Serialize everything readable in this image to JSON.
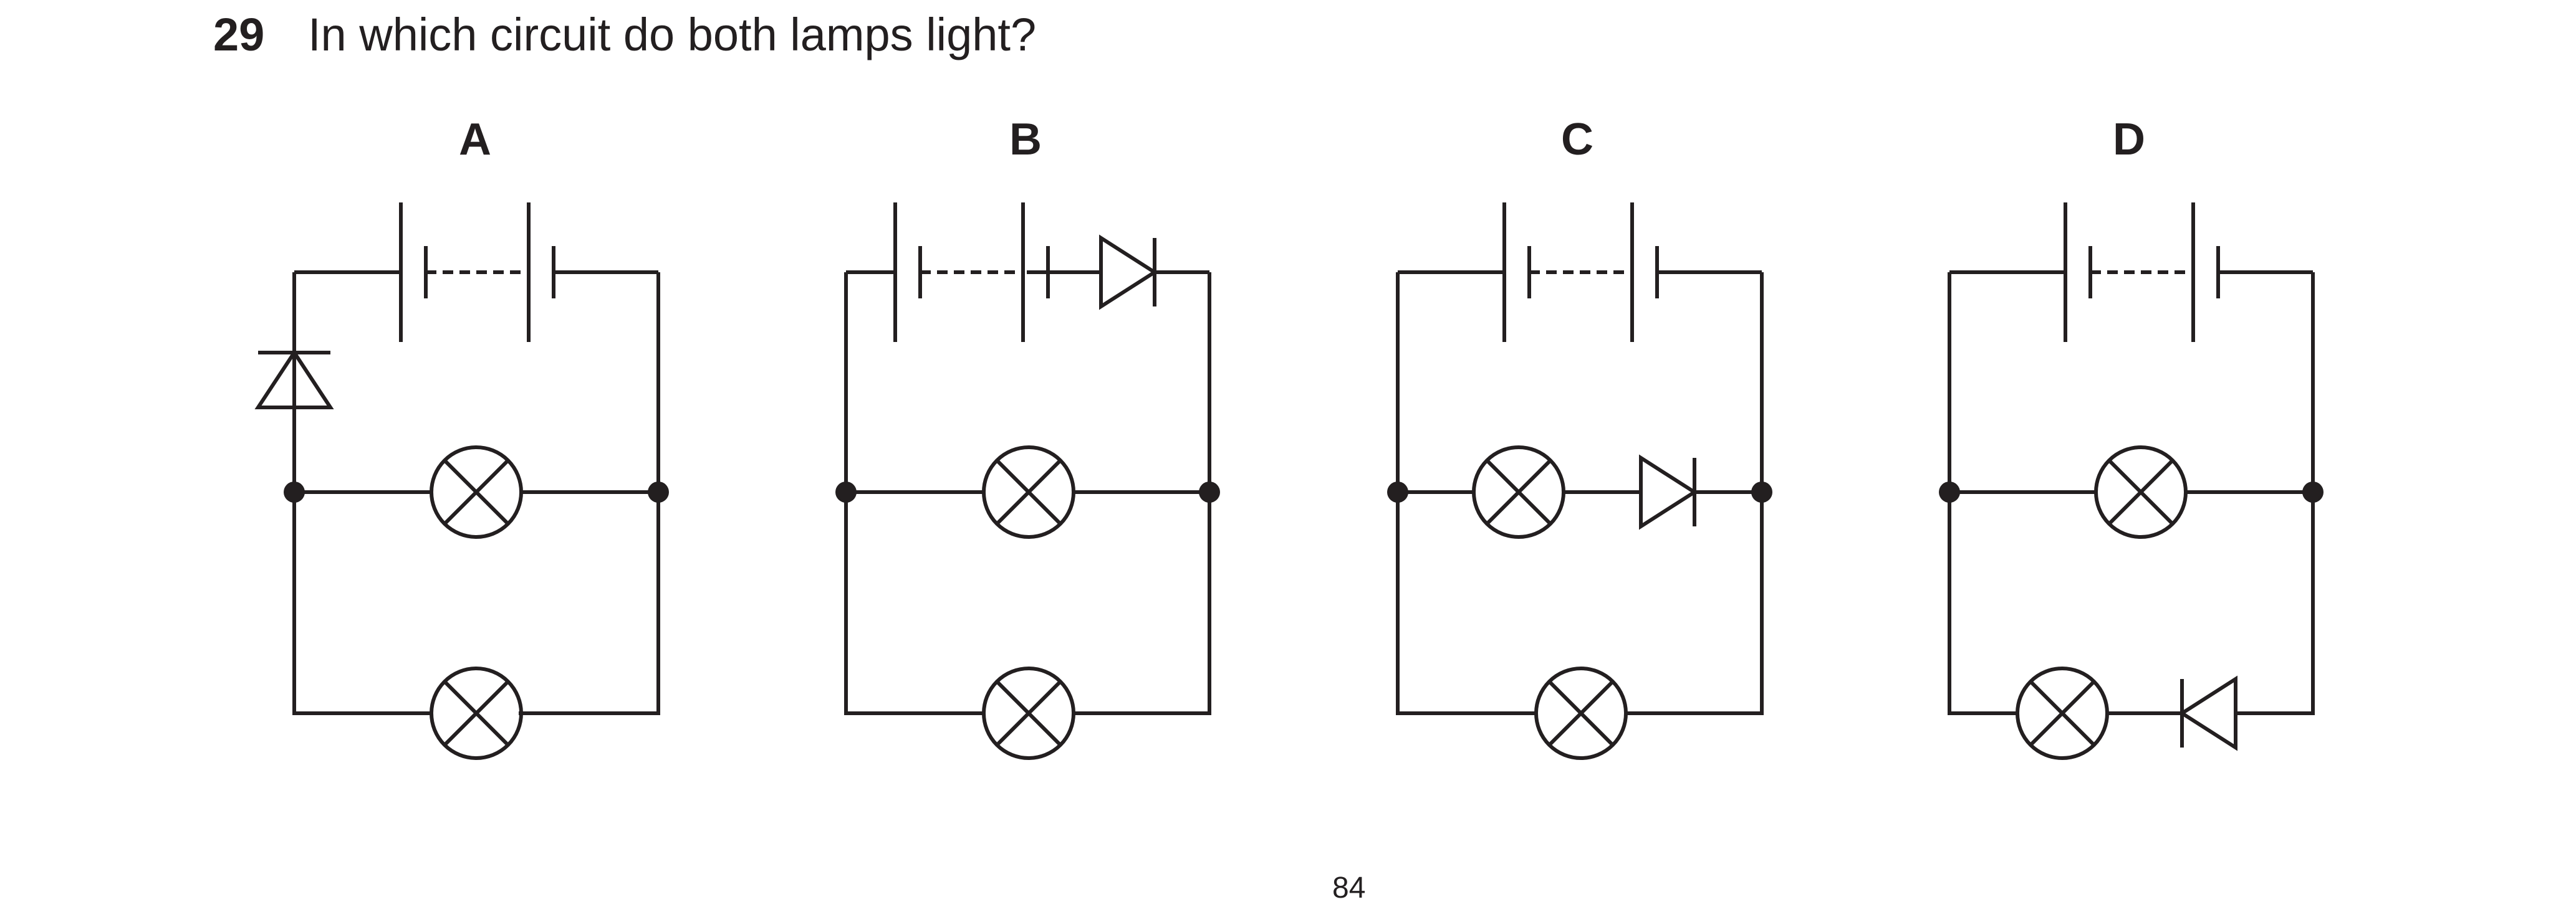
{
  "question": {
    "number": "29",
    "text": "In which circuit do both lamps light?"
  },
  "circuits": [
    {
      "label": "A",
      "diode_position": "left branch below battery",
      "diode_direction": "up"
    },
    {
      "label": "B",
      "diode_position": "top wire after battery",
      "diode_direction": "right"
    },
    {
      "label": "C",
      "diode_position": "middle branch after lamp",
      "diode_direction": "right"
    },
    {
      "label": "D",
      "diode_position": "bottom branch after lamp",
      "diode_direction": "left"
    }
  ],
  "page_number": "84",
  "colors": {
    "ink": "#231f20",
    "background": "#ffffff"
  }
}
